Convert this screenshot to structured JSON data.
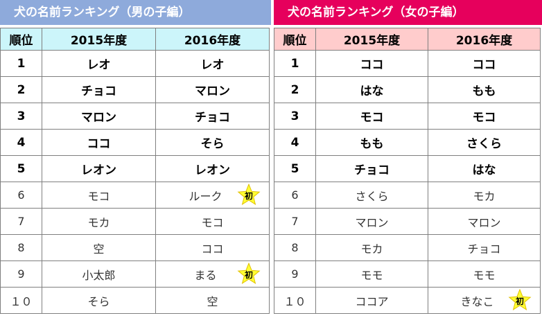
{
  "boys": {
    "title": "犬の名前ランキング（男の子編）",
    "headers": [
      "順位",
      "2015年度",
      "2016年度"
    ],
    "rows": [
      {
        "rank": "1",
        "y2015": "レオ",
        "y2016": "レオ",
        "new": false
      },
      {
        "rank": "2",
        "y2015": "チョコ",
        "y2016": "マロン",
        "new": false
      },
      {
        "rank": "3",
        "y2015": "マロン",
        "y2016": "チョコ",
        "new": false
      },
      {
        "rank": "4",
        "y2015": "ココ",
        "y2016": "そら",
        "new": false
      },
      {
        "rank": "5",
        "y2015": "レオン",
        "y2016": "レオン",
        "new": false
      },
      {
        "rank": "6",
        "y2015": "モコ",
        "y2016": "ルーク",
        "new": true
      },
      {
        "rank": "7",
        "y2015": "モカ",
        "y2016": "モコ",
        "new": false
      },
      {
        "rank": "8",
        "y2015": "空",
        "y2016": "ココ",
        "new": false
      },
      {
        "rank": "9",
        "y2015": "小太郎",
        "y2016": "まる",
        "new": true
      },
      {
        "rank": "１０",
        "y2015": "そら",
        "y2016": "空",
        "new": false
      }
    ]
  },
  "girls": {
    "title": "犬の名前ランキング（女の子編）",
    "headers": [
      "順位",
      "2015年度",
      "2016年度"
    ],
    "rows": [
      {
        "rank": "1",
        "y2015": "ココ",
        "y2016": "ココ",
        "new": false
      },
      {
        "rank": "2",
        "y2015": "はな",
        "y2016": "もも",
        "new": false
      },
      {
        "rank": "3",
        "y2015": "モコ",
        "y2016": "モコ",
        "new": false
      },
      {
        "rank": "4",
        "y2015": "もも",
        "y2016": "さくら",
        "new": false
      },
      {
        "rank": "5",
        "y2015": "チョコ",
        "y2016": "はな",
        "new": false
      },
      {
        "rank": "6",
        "y2015": "さくら",
        "y2016": "モカ",
        "new": false
      },
      {
        "rank": "7",
        "y2015": "マロン",
        "y2016": "マロン",
        "new": false
      },
      {
        "rank": "8",
        "y2015": "モカ",
        "y2016": "チョコ",
        "new": false
      },
      {
        "rank": "9",
        "y2015": "モモ",
        "y2016": "モモ",
        "new": false
      },
      {
        "rank": "１０",
        "y2015": "ココア",
        "y2016": "きなこ",
        "new": true
      }
    ]
  },
  "new_badge": {
    "label": "初",
    "icon": "star-icon",
    "star_color": "#ffff33",
    "star_stroke": "#e0c000"
  },
  "colors": {
    "boys_banner": "#8eaadb",
    "girls_banner": "#e6005c",
    "boys_header": "#ccf5fa",
    "girls_header": "#ffcccc"
  }
}
